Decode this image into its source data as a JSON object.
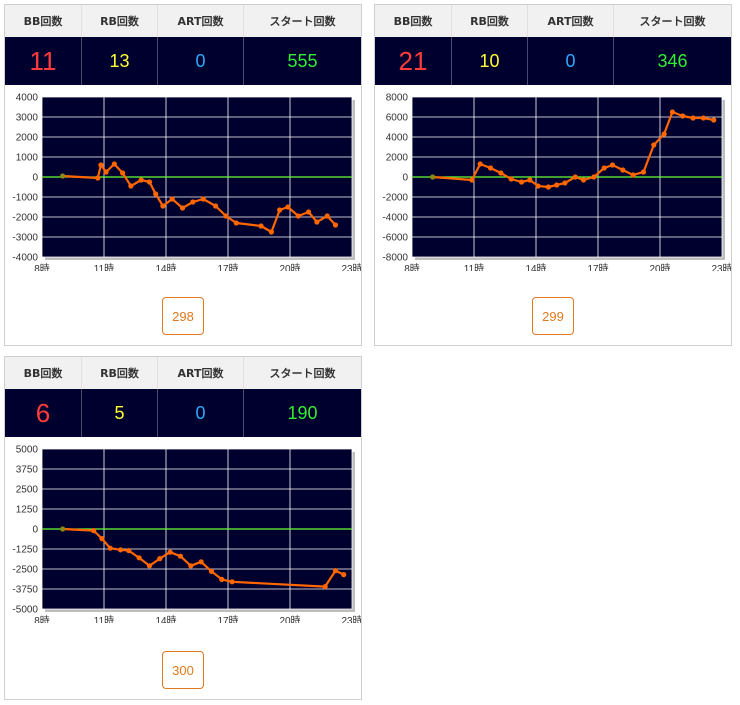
{
  "headers": {
    "bb": "BB回数",
    "rb": "RB回数",
    "art": "ART回数",
    "start": "スタート回数"
  },
  "colors": {
    "plot_bg": "#00002e",
    "line": "#ff6600",
    "zero_line": "#66ff33",
    "bb": "#ff3b3b",
    "rb": "#ffff33",
    "art": "#2ea8ff",
    "start": "#33ee33",
    "button": "#e07a1f"
  },
  "cards": [
    {
      "bb": "11",
      "rb": "13",
      "art": "0",
      "start": "555",
      "button_label": "298",
      "chart_data": {
        "type": "line",
        "x_unit": "時",
        "xlim": [
          8,
          23
        ],
        "x_ticks": [
          "8時",
          "11時",
          "14時",
          "17時",
          "20時",
          "23時"
        ],
        "ylim": [
          -4000,
          4000
        ],
        "y_ticks": [
          4000,
          3000,
          2000,
          1000,
          0,
          -1000,
          -2000,
          -3000,
          -4000
        ],
        "x": [
          9,
          10.7,
          10.85,
          11.1,
          11.5,
          11.9,
          12.3,
          12.8,
          13.2,
          13.5,
          13.85,
          14.3,
          14.8,
          15.3,
          15.8,
          16.4,
          16.9,
          17.4,
          18.6,
          19.1,
          19.5,
          19.9,
          20.4,
          20.9,
          21.3,
          21.8,
          22.2
        ],
        "y": [
          50,
          -50,
          600,
          250,
          650,
          200,
          -450,
          -150,
          -250,
          -850,
          -1450,
          -1100,
          -1550,
          -1250,
          -1100,
          -1450,
          -1950,
          -2300,
          -2450,
          -2750,
          -1650,
          -1500,
          -1950,
          -1750,
          -2250,
          -1950,
          -2400
        ]
      }
    },
    {
      "bb": "21",
      "rb": "10",
      "art": "0",
      "start": "346",
      "button_label": "299",
      "chart_data": {
        "type": "line",
        "x_unit": "時",
        "xlim": [
          8,
          23
        ],
        "x_ticks": [
          "8時",
          "11時",
          "14時",
          "17時",
          "20時",
          "23時"
        ],
        "ylim": [
          -8000,
          8000
        ],
        "y_ticks": [
          8000,
          6000,
          4000,
          2000,
          0,
          -2000,
          -4000,
          -6000,
          -8000
        ],
        "x": [
          9,
          10.9,
          11.3,
          11.8,
          12.3,
          12.8,
          13.3,
          13.7,
          14.1,
          14.6,
          15.0,
          15.4,
          15.9,
          16.3,
          16.8,
          17.3,
          17.7,
          18.2,
          18.7,
          19.2,
          19.7,
          20.2,
          20.6,
          21.1,
          21.6,
          22.1,
          22.6
        ],
        "y": [
          0,
          -300,
          1300,
          900,
          400,
          -200,
          -500,
          -300,
          -900,
          -1000,
          -800,
          -600,
          0,
          -300,
          0,
          900,
          1200,
          700,
          200,
          500,
          3200,
          4300,
          6500,
          6100,
          5900,
          5900,
          5700
        ]
      }
    },
    {
      "bb": "6",
      "rb": "5",
      "art": "0",
      "start": "190",
      "button_label": "300",
      "chart_data": {
        "type": "line",
        "x_unit": "時",
        "xlim": [
          8,
          23
        ],
        "x_ticks": [
          "8時",
          "11時",
          "14時",
          "17時",
          "20時",
          "23時"
        ],
        "ylim": [
          -5000,
          5000
        ],
        "y_ticks": [
          5000,
          3750,
          2500,
          1250,
          0,
          -1250,
          -2500,
          -3750,
          -5000
        ],
        "x": [
          9,
          10.5,
          10.9,
          11.3,
          11.8,
          12.2,
          12.7,
          13.2,
          13.7,
          14.2,
          14.7,
          15.2,
          15.7,
          16.2,
          16.7,
          17.2,
          21.7,
          22.2,
          22.6
        ],
        "y": [
          0,
          -100,
          -600,
          -1200,
          -1300,
          -1350,
          -1800,
          -2300,
          -1850,
          -1450,
          -1700,
          -2300,
          -2050,
          -2650,
          -3150,
          -3300,
          -3600,
          -2600,
          -2850
        ]
      }
    }
  ]
}
